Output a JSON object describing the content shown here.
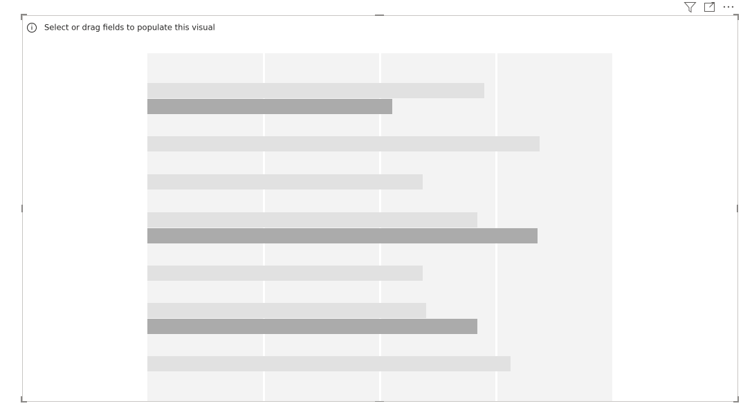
{
  "visual": {
    "placeholder_message": "Select or drag fields to populate this visual"
  }
}
